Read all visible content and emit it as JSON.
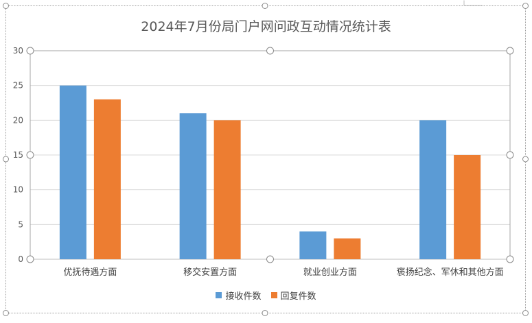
{
  "chart_data": {
    "type": "bar",
    "title": "2024年7月份局门户网问政互动情况统计表",
    "categories": [
      "优抚待遇方面",
      "移交安置方面",
      "就业创业方面",
      "褒扬纪念、军休和其他方面"
    ],
    "series": [
      {
        "name": "接收件数",
        "values": [
          25,
          21,
          4,
          20
        ],
        "color": "#5B9BD5"
      },
      {
        "name": "回复件数",
        "values": [
          23,
          20,
          3,
          15
        ],
        "color": "#ED7D31"
      }
    ],
    "ylim": [
      0,
      30
    ],
    "yticks": [
      0,
      5,
      10,
      15,
      20,
      25,
      30
    ],
    "grid": true,
    "legend_position": "bottom"
  }
}
